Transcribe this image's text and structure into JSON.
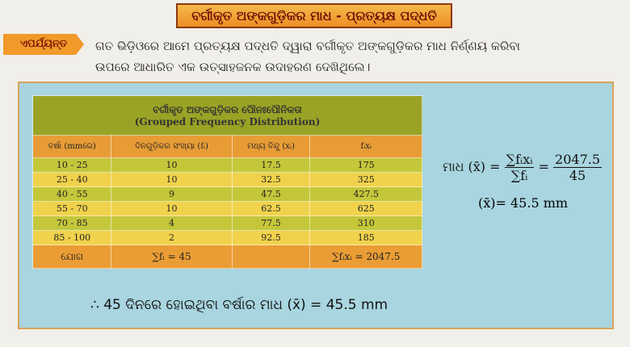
{
  "header": {
    "title": "ବର୍ଗୀକୃତ ଅଙ୍କଗୁଡ଼ିକର ମାଧ - ପ୍ରତ୍ୟକ୍ଷ ପଦ୍ଧତି"
  },
  "recap": {
    "tag": "ଏପର୍ଯ୍ୟନ୍ତ",
    "text": "ଗତ ଭିଡ଼ିଓରେ ଆମେ ପ୍ରତ୍ୟକ୍ଷ ପଦ୍ଧତି ଦ୍ୱାରା ବର୍ଗୀକୃତ ଅଙ୍କଗୁଡ଼ିକର ମାଧ ନିର୍ଣ୍ଣୟ କରିବା ଉପରେ ଆଧାରିତ ଏକ ଉତ୍ସାହଜନକ ଉଦାହରଣ ଦେଖିଥିଲେ।"
  },
  "table": {
    "title": "ବର୍ଗୀକୃତ ଅଙ୍କଗୁଡ଼ିକର ପୌନଃପୌନିକତା",
    "subtitle": "(Grouped Frequency Distribution)",
    "columns": [
      "ବର୍ଷା (mmରେ)",
      "ଦିନଗୁଡ଼ିକର ସଂଖ୍ୟା (fᵢ)",
      "ମଧ୍ୟ ବିନ୍ଦୁ (xᵢ)",
      "fᵢxᵢ"
    ],
    "rows": [
      [
        "10 - 25",
        "10",
        "17.5",
        "175"
      ],
      [
        "25 - 40",
        "10",
        "32.5",
        "325"
      ],
      [
        "40 - 55",
        "9",
        "47.5",
        "427.5"
      ],
      [
        "55 - 70",
        "10",
        "62.5",
        "625"
      ],
      [
        "70 - 85",
        "4",
        "77.5",
        "310"
      ],
      [
        "85 - 100",
        "2",
        "92.5",
        "185"
      ]
    ],
    "footer": [
      "ଯୋଗ",
      "∑fᵢ = 45",
      "",
      "∑fᵢxᵢ = 2047.5"
    ]
  },
  "formula": {
    "lhs": "ମାଧ (x̄) =",
    "num1": "∑fᵢxᵢ",
    "den1": "∑fᵢ",
    "eq": "=",
    "num2": "2047.5",
    "den2": "45",
    "result": "(x̄)= 45.5 mm"
  },
  "conclusion": "∴ 45 ଦିନରେ ହୋଇଥିବା ବର୍ଷାର ମାଧ (x̄) = 45.5 mm"
}
